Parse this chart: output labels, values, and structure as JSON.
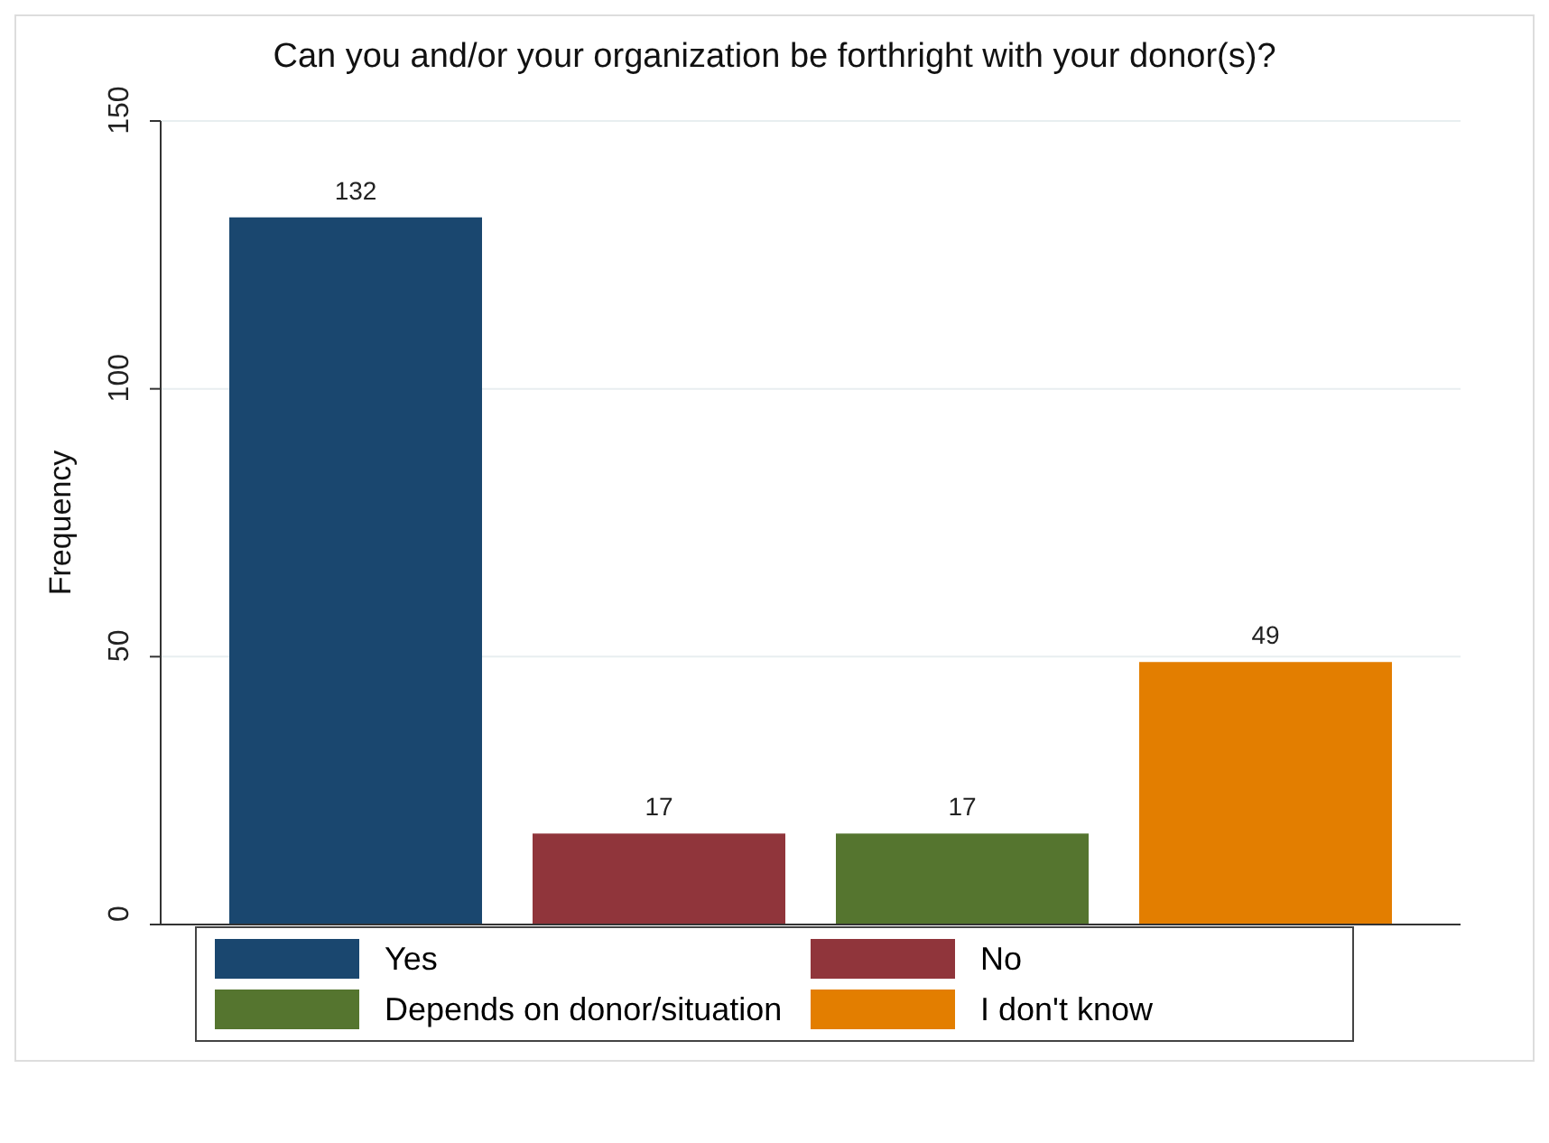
{
  "chart_data": {
    "type": "bar",
    "title": "Can you and/or your organization be forthright with your donor(s)?",
    "ylabel": "Frequency",
    "categories": [
      null
    ],
    "series": [
      {
        "name": "Yes",
        "color": "#1a476f",
        "values": [
          132
        ]
      },
      {
        "name": "No",
        "color": "#90353b",
        "values": [
          17
        ]
      },
      {
        "name": "Depends on donor/situation",
        "color": "#55752f",
        "values": [
          17
        ]
      },
      {
        "name": "I don't know",
        "color": "#e37e00",
        "values": [
          49
        ]
      }
    ],
    "ylim": [
      0,
      150
    ],
    "yticks": [
      0,
      50,
      100,
      150
    ],
    "grid": "y",
    "legend": "bottom",
    "data_labels": true
  }
}
